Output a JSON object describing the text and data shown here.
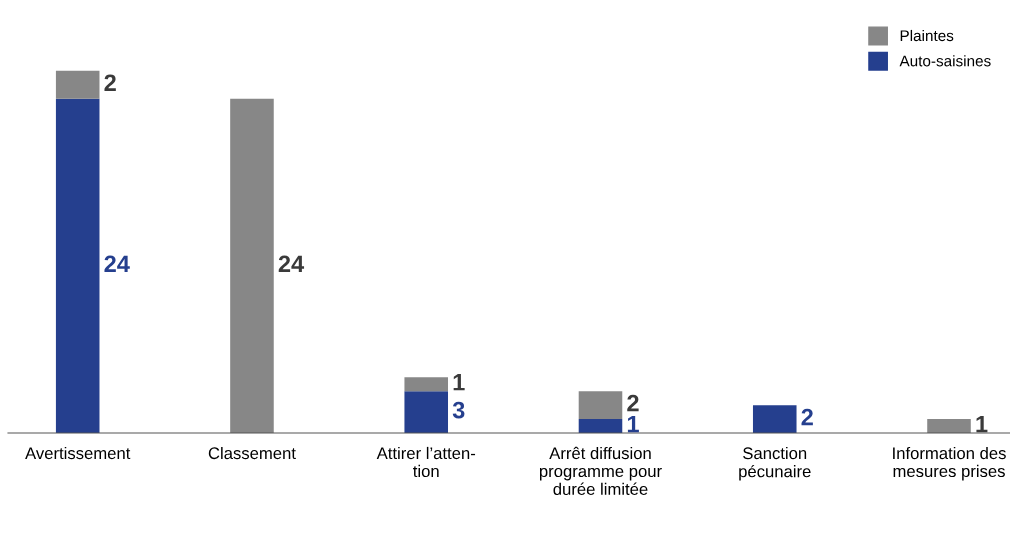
{
  "chart_data": {
    "type": "bar",
    "stacked": true,
    "data_labels": true,
    "legend": "top right",
    "categories": [
      "Avertissement",
      "Classement",
      "Attirer l’atten-\ntion",
      "Arrêt diffusion\nprogramme pour\ndurée limitée",
      "Sanction\npécunaire",
      "Information des\nmesures prises"
    ],
    "series": [
      {
        "name": "Auto-saisines",
        "color": "#253f8e",
        "values": [
          24,
          null,
          3,
          1,
          2,
          null
        ]
      },
      {
        "name": "Plaintes",
        "color": "#878787",
        "values": [
          2,
          24,
          1,
          2,
          null,
          1
        ]
      }
    ]
  }
}
